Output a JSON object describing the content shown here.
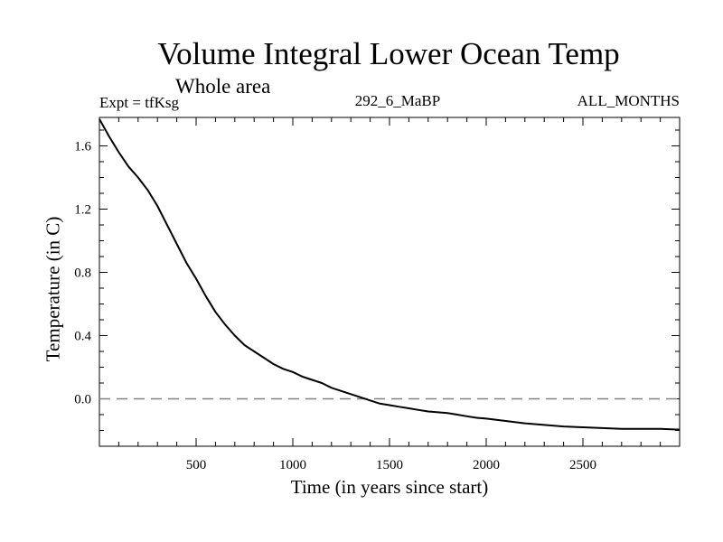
{
  "chart_data": {
    "type": "line",
    "title": "Volume Integral Lower Ocean Temp",
    "subtitle": "Whole area",
    "expt": "Expt = tfKsg",
    "center_label": "292_6_MaBP",
    "right_label": "ALL_MONTHS",
    "xlabel": "Time (in years since start)",
    "ylabel": "Temperature (in C)",
    "xlim": [
      0,
      3000
    ],
    "ylim": [
      -0.3,
      1.78
    ],
    "xticks": [
      500,
      1000,
      1500,
      2000,
      2500
    ],
    "xtick_labels": [
      "500",
      "1000",
      "1500",
      "2000",
      "2500"
    ],
    "yticks": [
      0.0,
      0.4,
      0.8,
      1.2,
      1.6
    ],
    "ytick_labels": [
      "0.0",
      "0.4",
      "0.8",
      "1.2",
      "1.6"
    ],
    "reference_line": {
      "y": 0.0,
      "style": "dashed",
      "color": "#808080"
    },
    "series": [
      {
        "name": "Lower Ocean Temp",
        "color": "#000000",
        "x": [
          0,
          50,
          100,
          150,
          200,
          250,
          300,
          350,
          400,
          450,
          500,
          550,
          600,
          650,
          700,
          750,
          800,
          850,
          900,
          950,
          1000,
          1050,
          1100,
          1150,
          1200,
          1250,
          1300,
          1350,
          1400,
          1450,
          1500,
          1550,
          1600,
          1650,
          1700,
          1750,
          1800,
          1850,
          1900,
          1950,
          2000,
          2100,
          2200,
          2300,
          2400,
          2500,
          2600,
          2700,
          2800,
          2900,
          3000
        ],
        "values": [
          1.77,
          1.66,
          1.56,
          1.47,
          1.4,
          1.32,
          1.22,
          1.1,
          0.98,
          0.86,
          0.76,
          0.65,
          0.55,
          0.47,
          0.4,
          0.34,
          0.3,
          0.26,
          0.22,
          0.19,
          0.17,
          0.14,
          0.12,
          0.1,
          0.07,
          0.05,
          0.03,
          0.01,
          -0.01,
          -0.03,
          -0.04,
          -0.05,
          -0.06,
          -0.07,
          -0.08,
          -0.085,
          -0.09,
          -0.1,
          -0.11,
          -0.12,
          -0.125,
          -0.14,
          -0.155,
          -0.165,
          -0.175,
          -0.18,
          -0.185,
          -0.19,
          -0.19,
          -0.19,
          -0.195
        ]
      }
    ]
  }
}
